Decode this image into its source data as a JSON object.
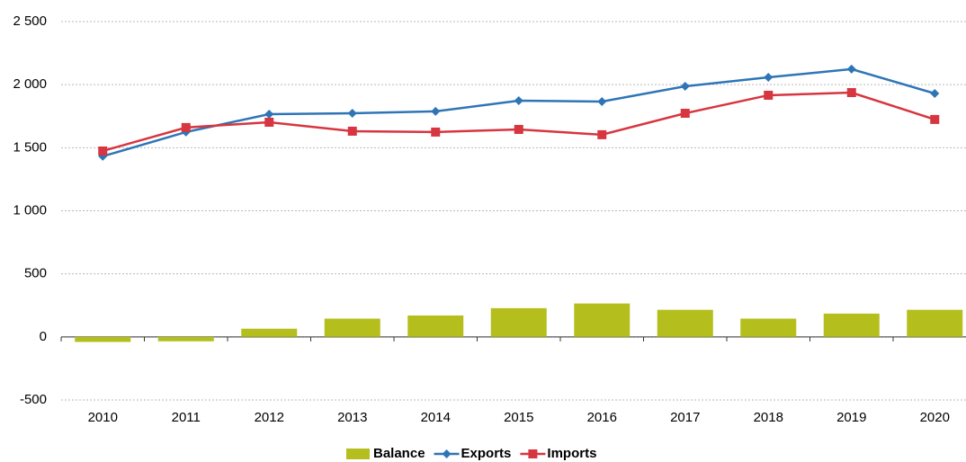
{
  "chart_data": {
    "type": "bar-line",
    "categories": [
      "2010",
      "2011",
      "2012",
      "2013",
      "2014",
      "2015",
      "2016",
      "2017",
      "2018",
      "2019",
      "2020"
    ],
    "series": [
      {
        "name": "Balance",
        "type": "bar",
        "color": "#b4bf1d",
        "values": [
          -40,
          -35,
          65,
          145,
          170,
          228,
          265,
          215,
          145,
          185,
          215
        ]
      },
      {
        "name": "Exports",
        "type": "line",
        "marker": "diamond",
        "color": "#2e75b6",
        "values": [
          1432,
          1624,
          1766,
          1773,
          1788,
          1873,
          1866,
          1987,
          2058,
          2123,
          1930
        ]
      },
      {
        "name": "Imports",
        "type": "line",
        "marker": "square",
        "color": "#d7353f",
        "values": [
          1474,
          1660,
          1702,
          1631,
          1624,
          1645,
          1603,
          1773,
          1916,
          1937,
          1724
        ]
      }
    ],
    "ylim": [
      -500,
      2500
    ],
    "yticks": [
      -500,
      0,
      500,
      {
        "value": 1000,
        "label": "1 000"
      },
      {
        "value": 1500,
        "label": "1 500"
      },
      {
        "value": 2000,
        "label": "2 000"
      },
      {
        "value": 2500,
        "label": "2 500"
      }
    ],
    "grid": true,
    "legend": "bottom"
  }
}
